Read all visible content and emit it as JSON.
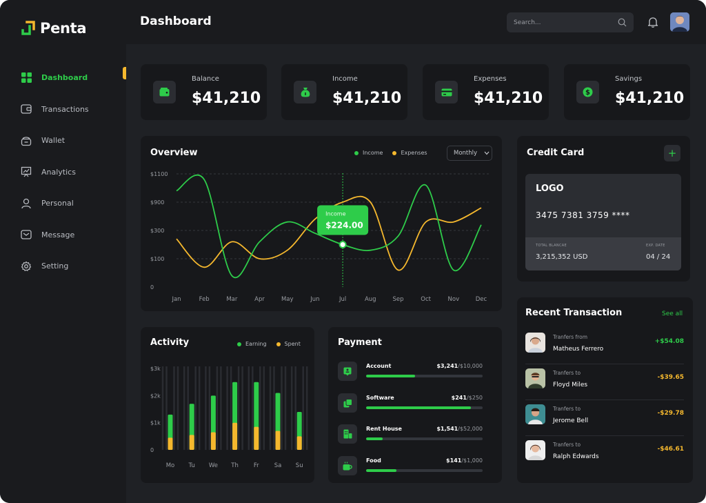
{
  "brand": {
    "name": "Penta"
  },
  "sidebar": {
    "items": [
      {
        "label": "Dashboard",
        "icon": "grid-icon"
      },
      {
        "label": "Transactions",
        "icon": "card-icon"
      },
      {
        "label": "Wallet",
        "icon": "wallet-icon"
      },
      {
        "label": "Analytics",
        "icon": "presentation-chart-icon"
      },
      {
        "label": "Personal",
        "icon": "user-icon"
      },
      {
        "label": "Message",
        "icon": "mail-icon"
      },
      {
        "label": "Setting",
        "icon": "gear-icon"
      }
    ]
  },
  "header": {
    "title": "Dashboard",
    "search_placeholder": "Search..."
  },
  "stats": [
    {
      "label": "Balance",
      "value": "$41,210",
      "icon": "wallet-icon"
    },
    {
      "label": "Income",
      "value": "$41,210",
      "icon": "money-bag-icon"
    },
    {
      "label": "Expenses",
      "value": "$41,210",
      "icon": "card-icon"
    },
    {
      "label": "Savings",
      "value": "$41,210",
      "icon": "dollar-coin-icon"
    }
  ],
  "overview": {
    "title": "Overview",
    "legend": [
      "Income",
      "Expenses"
    ],
    "period": "Monthly",
    "tooltip_label": "Income",
    "tooltip_value": "$224.00"
  },
  "activity": {
    "title": "Activity",
    "legend": [
      "Earning",
      "Spent"
    ]
  },
  "credit_card": {
    "title": "Credit Card",
    "add": "+",
    "logo": "LOGO",
    "number": "3475 7381 3759 ****",
    "balance_label": "TOTAL BLANCAE",
    "balance": "3,215,352 USD",
    "exp_label": "EXP. DATE",
    "exp": "04 / 24"
  },
  "payment": {
    "title": "Payment",
    "items": [
      {
        "name": "Account",
        "amount": "$3,241",
        "total": "/$10,000",
        "fraction": 0.42,
        "icon": "account-icon"
      },
      {
        "name": "Software",
        "amount": "$241",
        "total": "/$250",
        "fraction": 0.9,
        "icon": "layers-icon"
      },
      {
        "name": "Rent House",
        "amount": "$1,541",
        "total": "/$52,000",
        "fraction": 0.14,
        "icon": "building-icon"
      },
      {
        "name": "Food",
        "amount": "$141",
        "total": "/$1,000",
        "fraction": 0.26,
        "icon": "coffee-cup-icon"
      }
    ]
  },
  "transactions": {
    "title": "Recent Transaction",
    "see_all": "See all",
    "items": [
      {
        "label": "Tranfers from",
        "name": "Matheus Ferrero",
        "amount": "+$54.08",
        "color": "#2ecc4a"
      },
      {
        "label": "Tranfers to",
        "name": "Floyd Miles",
        "amount": "-$39.65",
        "color": "#f5b82e"
      },
      {
        "label": "Tranfers to",
        "name": "Jerome Bell",
        "amount": "-$29.78",
        "color": "#f5b82e"
      },
      {
        "label": "Tranfers to",
        "name": "Ralph Edwards",
        "amount": "-$46.61",
        "color": "#f5b82e"
      }
    ]
  },
  "colors": {
    "accent": "#2ecc4a",
    "secondary": "#f5b82e",
    "bg": "#1f2125",
    "card": "#17181b"
  },
  "chart_data": [
    {
      "type": "line",
      "title": "Overview",
      "categories": [
        "Jan",
        "Feb",
        "Mar",
        "Apr",
        "May",
        "Jun",
        "Jul",
        "Aug",
        "Sep",
        "Oct",
        "Nov",
        "Dec"
      ],
      "y_ticks": [
        "0",
        "$100",
        "$300",
        "$900",
        "$1100"
      ],
      "series": [
        {
          "name": "Income",
          "values": [
            3.4,
            3.8,
            0.4,
            1.6,
            2.3,
            1.9,
            1.5,
            1.3,
            1.8,
            3.6,
            0.6,
            2.2
          ]
        },
        {
          "name": "Expenses",
          "values": [
            1.7,
            0.7,
            1.6,
            1.0,
            1.3,
            2.4,
            3.0,
            3.0,
            0.6,
            2.3,
            2.3,
            2.8
          ]
        }
      ],
      "highlight": {
        "series": "Income",
        "category": "Jul",
        "label": "$224.00"
      },
      "grid": true,
      "legend": "top-right"
    },
    {
      "type": "bar",
      "title": "Activity",
      "categories": [
        "Mo",
        "Tu",
        "We",
        "Th",
        "Fr",
        "Sa",
        "Su"
      ],
      "y_ticks": [
        "0",
        "$1k",
        "$2k",
        "$3k"
      ],
      "ylim": [
        0,
        3
      ],
      "series": [
        {
          "name": "Earning",
          "values": [
            1.3,
            1.7,
            2.0,
            2.5,
            2.5,
            2.1,
            1.4
          ]
        },
        {
          "name": "Spent",
          "values": [
            0.45,
            0.55,
            0.65,
            1.0,
            0.85,
            0.7,
            0.5
          ]
        }
      ],
      "stacked": "overlay",
      "legend": "top-right"
    }
  ]
}
